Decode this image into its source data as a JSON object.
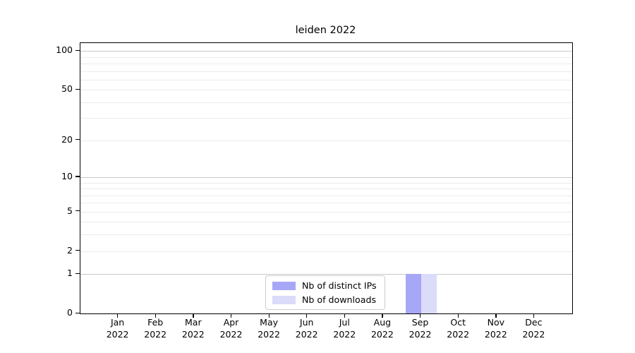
{
  "title": "leiden 2022",
  "colors": {
    "distinct_ips": "#a7a7f8",
    "downloads": "#dbdbfa",
    "grid_major": "#c8c8c8",
    "grid_minor": "#ebebeb",
    "frame": "#000000",
    "legend_border": "#cccccc"
  },
  "legend": {
    "items": [
      {
        "label": "Nb of distinct IPs",
        "color_key": "distinct_ips"
      },
      {
        "label": "Nb of downloads",
        "color_key": "downloads"
      }
    ]
  },
  "chart_data": {
    "type": "bar",
    "title": "leiden 2022",
    "categories": [
      "Jan 2022",
      "Feb 2022",
      "Mar 2022",
      "Apr 2022",
      "May 2022",
      "Jun 2022",
      "Jul 2022",
      "Aug 2022",
      "Sep 2022",
      "Oct 2022",
      "Nov 2022",
      "Dec 2022"
    ],
    "series": [
      {
        "name": "Nb of distinct IPs",
        "values": [
          0,
          0,
          0,
          0,
          0,
          0,
          0,
          0,
          1,
          0,
          0,
          0
        ]
      },
      {
        "name": "Nb of downloads",
        "values": [
          0,
          0,
          0,
          0,
          0,
          0,
          0,
          0,
          1,
          0,
          0,
          0
        ]
      }
    ],
    "xlabel": "",
    "ylabel": "",
    "yscale": "symlog",
    "ylim": [
      0,
      115
    ],
    "yticks_labeled": [
      0,
      1,
      2,
      5,
      10,
      20,
      50,
      100
    ],
    "yticks_major_grid": [
      1,
      10,
      100
    ],
    "yticks_minor": [
      3,
      4,
      6,
      7,
      8,
      9,
      30,
      40,
      60,
      70,
      80,
      90
    ],
    "grid": "horizontal",
    "legend_position": "lower center"
  }
}
